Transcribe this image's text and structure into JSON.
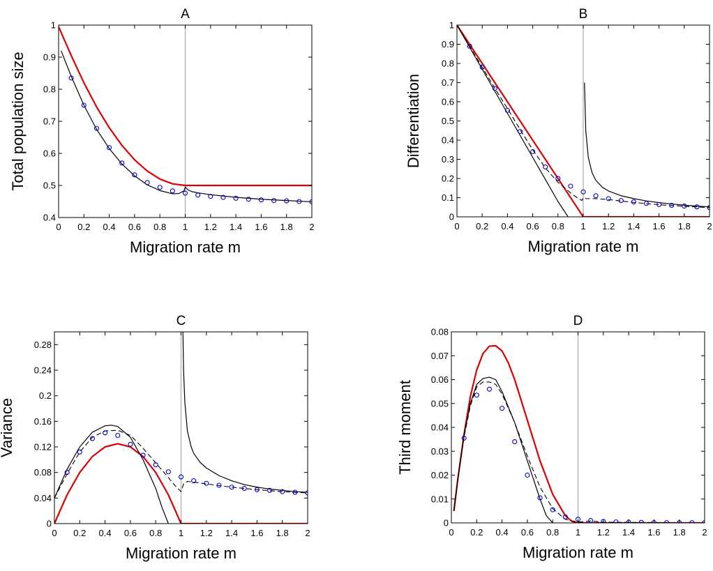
{
  "chart_data": [
    {
      "type": "line",
      "title": "A",
      "xlabel": "Migration rate m",
      "ylabel": "Total population size",
      "xlim": [
        0,
        2
      ],
      "ylim": [
        0.4,
        1
      ],
      "x_ticks": [
        0,
        0.2,
        0.4,
        0.6,
        0.8,
        1,
        1.2,
        1.4,
        1.6,
        1.8,
        2
      ],
      "x_tick_labels": [
        "0",
        "0.2",
        "0.4",
        "0.6",
        "0.8",
        "1",
        "1.2",
        "1.4",
        "1.6",
        "1.8",
        "2"
      ],
      "y_ticks": [
        0.4,
        0.5,
        0.6,
        0.7,
        0.8,
        0.9,
        1
      ],
      "y_tick_labels": [
        "0.4",
        "0.5",
        "0.6",
        "0.7",
        "0.8",
        "0.9",
        "1"
      ],
      "vline": 1,
      "colors": {
        "red": "#dd0000",
        "black": "#000000",
        "markers": "#0000cc",
        "vline": "#aaaaaa"
      },
      "series": [
        {
          "style": "red",
          "x": [
            0,
            0.1,
            0.2,
            0.3,
            0.4,
            0.5,
            0.6,
            0.7,
            0.8,
            0.9,
            1.0,
            1.1,
            1.2,
            1.4,
            1.6,
            1.8,
            2.0
          ],
          "y": [
            0.995,
            0.905,
            0.82,
            0.745,
            0.68,
            0.625,
            0.58,
            0.545,
            0.52,
            0.505,
            0.5,
            0.5,
            0.5,
            0.5,
            0.5,
            0.5,
            0.5
          ]
        },
        {
          "style": "black",
          "x": [
            0.02,
            0.1,
            0.2,
            0.3,
            0.4,
            0.5,
            0.6,
            0.7,
            0.8,
            0.9,
            0.95,
            0.99,
            1.0,
            1.02,
            1.05,
            1.1,
            1.2,
            1.4,
            1.6,
            1.8,
            2.0
          ],
          "y": [
            0.92,
            0.84,
            0.75,
            0.675,
            0.615,
            0.567,
            0.53,
            0.502,
            0.484,
            0.474,
            0.475,
            0.483,
            0.495,
            0.487,
            0.481,
            0.477,
            0.471,
            0.463,
            0.457,
            0.453,
            0.449
          ]
        },
        {
          "style": "markers",
          "x": [
            0.1,
            0.2,
            0.3,
            0.4,
            0.5,
            0.6,
            0.7,
            0.8,
            0.9,
            1.0,
            1.1,
            1.2,
            1.3,
            1.4,
            1.5,
            1.6,
            1.7,
            1.8,
            1.9,
            2.0
          ],
          "y": [
            0.835,
            0.75,
            0.678,
            0.618,
            0.57,
            0.533,
            0.509,
            0.494,
            0.483,
            0.476,
            0.47,
            0.466,
            0.463,
            0.46,
            0.457,
            0.455,
            0.453,
            0.452,
            0.45,
            0.449
          ]
        }
      ]
    },
    {
      "type": "line",
      "title": "B",
      "xlabel": "Migration rate m",
      "ylabel": "Differentiation",
      "xlim": [
        0,
        2
      ],
      "ylim": [
        0,
        1
      ],
      "x_ticks": [
        0,
        0.2,
        0.4,
        0.6,
        0.8,
        1,
        1.2,
        1.4,
        1.6,
        1.8,
        2
      ],
      "x_tick_labels": [
        "0",
        "0.2",
        "0.4",
        "0.6",
        "0.8",
        "1",
        "1.2",
        "1.4",
        "1.6",
        "1.8",
        "2"
      ],
      "y_ticks": [
        0,
        0.1,
        0.2,
        0.3,
        0.4,
        0.5,
        0.6,
        0.7,
        0.8,
        0.9,
        1
      ],
      "y_tick_labels": [
        "0",
        "0.1",
        "0.2",
        "0.3",
        "0.4",
        "0.5",
        "0.6",
        "0.7",
        "0.8",
        "0.9",
        "1"
      ],
      "vline": 1,
      "colors": {
        "red": "#dd0000",
        "black": "#000000",
        "markers": "#0000cc",
        "vline": "#aaaaaa"
      },
      "series": [
        {
          "style": "red",
          "x": [
            0,
            1,
            1,
            2
          ],
          "y": [
            1,
            0,
            0,
            0
          ]
        },
        {
          "style": "black",
          "x": [
            0,
            0.2,
            0.4,
            0.6,
            0.8,
            0.88
          ],
          "y": [
            1,
            0.77,
            0.54,
            0.31,
            0.08,
            0
          ]
        },
        {
          "style": "black",
          "x": [
            1.01,
            1.02,
            1.04,
            1.07,
            1.1,
            1.15,
            1.2,
            1.3,
            1.4,
            1.5,
            1.6,
            1.7,
            1.8,
            1.9,
            2.0
          ],
          "y": [
            0.7,
            0.45,
            0.31,
            0.23,
            0.19,
            0.155,
            0.135,
            0.11,
            0.095,
            0.083,
            0.074,
            0.067,
            0.061,
            0.056,
            0.052
          ]
        },
        {
          "style": "dashed",
          "x": [
            0,
            0.1,
            0.2,
            0.3,
            0.4,
            0.5,
            0.6,
            0.7,
            0.8,
            0.9,
            0.95,
            0.99,
            1.0,
            1.02,
            1.05,
            1.1,
            1.2,
            1.4,
            1.6,
            1.8,
            2.0
          ],
          "y": [
            1,
            0.89,
            0.78,
            0.67,
            0.565,
            0.455,
            0.35,
            0.255,
            0.18,
            0.125,
            0.1,
            0.085,
            0.1,
            0.095,
            0.095,
            0.095,
            0.09,
            0.075,
            0.063,
            0.055,
            0.048
          ]
        },
        {
          "style": "markers",
          "x": [
            0.1,
            0.2,
            0.3,
            0.4,
            0.5,
            0.6,
            0.7,
            0.8,
            0.9,
            1.0,
            1.1,
            1.2,
            1.3,
            1.4,
            1.5,
            1.6,
            1.7,
            1.8,
            1.9,
            2.0
          ],
          "y": [
            0.89,
            0.78,
            0.67,
            0.555,
            0.445,
            0.34,
            0.26,
            0.2,
            0.16,
            0.13,
            0.11,
            0.095,
            0.085,
            0.078,
            0.07,
            0.064,
            0.06,
            0.056,
            0.052,
            0.048
          ]
        }
      ]
    },
    {
      "type": "line",
      "title": "C",
      "xlabel": "Migration rate m",
      "ylabel": "Variance",
      "xlim": [
        0,
        2
      ],
      "ylim": [
        0,
        0.3
      ],
      "x_ticks": [
        0,
        0.2,
        0.4,
        0.6,
        0.8,
        1,
        1.2,
        1.4,
        1.6,
        1.8,
        2
      ],
      "x_tick_labels": [
        "0",
        "0.2",
        "0.4",
        "0.6",
        "0.8",
        "1",
        "1.2",
        "1.4",
        "1.6",
        "1.8",
        "2"
      ],
      "y_ticks": [
        0,
        0.04,
        0.08,
        0.12,
        0.16,
        0.2,
        0.24,
        0.28
      ],
      "y_tick_labels": [
        "0",
        "0.04",
        "0.08",
        "0.12",
        "0.16",
        "0.2",
        "0.24",
        "0.28"
      ],
      "vline": 1,
      "colors": {
        "red": "#dd0000",
        "black": "#000000",
        "markers": "#0000cc",
        "vline": "#aaaaaa"
      },
      "series": [
        {
          "style": "red",
          "x": [
            0,
            0.1,
            0.2,
            0.3,
            0.4,
            0.5,
            0.6,
            0.7,
            0.8,
            0.9,
            1.0,
            2.0
          ],
          "y": [
            0,
            0.045,
            0.08,
            0.105,
            0.12,
            0.125,
            0.12,
            0.105,
            0.08,
            0.045,
            0,
            0
          ]
        },
        {
          "style": "black",
          "x": [
            0,
            0.1,
            0.2,
            0.3,
            0.4,
            0.45,
            0.5,
            0.6,
            0.7,
            0.8,
            0.85,
            0.9
          ],
          "y": [
            0.04,
            0.085,
            0.12,
            0.143,
            0.153,
            0.154,
            0.152,
            0.135,
            0.1,
            0.055,
            0.025,
            0
          ]
        },
        {
          "style": "black",
          "x": [
            1.015,
            1.02,
            1.03,
            1.05,
            1.08,
            1.1,
            1.15,
            1.2,
            1.3,
            1.4,
            1.5,
            1.6,
            1.7,
            1.8,
            1.9,
            2.0
          ],
          "y": [
            0.3,
            0.24,
            0.19,
            0.145,
            0.12,
            0.11,
            0.096,
            0.087,
            0.075,
            0.067,
            0.061,
            0.057,
            0.054,
            0.052,
            0.05,
            0.049
          ]
        },
        {
          "style": "dashed",
          "x": [
            0,
            0.1,
            0.2,
            0.3,
            0.4,
            0.5,
            0.6,
            0.7,
            0.8,
            0.9,
            0.95,
            1.0,
            1.02,
            1.05,
            1.1,
            1.2,
            1.4,
            1.6,
            1.8,
            2.0
          ],
          "y": [
            0.04,
            0.078,
            0.112,
            0.135,
            0.145,
            0.146,
            0.138,
            0.118,
            0.095,
            0.072,
            0.06,
            0.05,
            0.062,
            0.066,
            0.065,
            0.062,
            0.057,
            0.053,
            0.05,
            0.048
          ]
        },
        {
          "style": "markers",
          "x": [
            0.1,
            0.2,
            0.3,
            0.4,
            0.5,
            0.6,
            0.7,
            0.8,
            0.9,
            1.0,
            1.1,
            1.2,
            1.3,
            1.4,
            1.5,
            1.6,
            1.7,
            1.8,
            1.9,
            2.0
          ],
          "y": [
            0.08,
            0.112,
            0.133,
            0.142,
            0.138,
            0.124,
            0.107,
            0.092,
            0.081,
            0.073,
            0.067,
            0.063,
            0.06,
            0.057,
            0.055,
            0.053,
            0.052,
            0.05,
            0.049,
            0.048
          ]
        }
      ]
    },
    {
      "type": "line",
      "title": "D",
      "xlabel": "Migration rate m",
      "ylabel": "Third moment",
      "xlim": [
        0,
        2
      ],
      "ylim": [
        0,
        0.08
      ],
      "x_ticks": [
        0,
        0.2,
        0.4,
        0.6,
        0.8,
        1,
        1.2,
        1.4,
        1.6,
        1.8,
        2
      ],
      "x_tick_labels": [
        "0",
        "0.2",
        "0.4",
        "0.6",
        "0.8",
        "1",
        "1.2",
        "1.4",
        "1.6",
        "1.8",
        "2"
      ],
      "y_ticks": [
        0,
        0.01,
        0.02,
        0.03,
        0.04,
        0.05,
        0.06,
        0.07,
        0.08
      ],
      "y_tick_labels": [
        "0",
        "0.01",
        "0.02",
        "0.03",
        "0.04",
        "0.05",
        "0.06",
        "0.07",
        "0.08"
      ],
      "vline": 1,
      "colors": {
        "red": "#dd0000",
        "black": "#000000",
        "markers": "#0000cc",
        "vline": "#aaaaaa"
      },
      "series": [
        {
          "style": "red",
          "x": [
            0.02,
            0.05,
            0.1,
            0.15,
            0.2,
            0.25,
            0.3,
            0.35,
            0.4,
            0.45,
            0.5,
            0.6,
            0.7,
            0.8,
            0.9,
            0.95,
            1.0,
            2.0
          ],
          "y": [
            0.005,
            0.018,
            0.037,
            0.053,
            0.064,
            0.071,
            0.074,
            0.0742,
            0.072,
            0.067,
            0.06,
            0.043,
            0.026,
            0.012,
            0.003,
            0.0007,
            0,
            0
          ]
        },
        {
          "style": "black",
          "x": [
            0.02,
            0.05,
            0.1,
            0.15,
            0.2,
            0.25,
            0.3,
            0.35,
            0.4,
            0.5,
            0.6,
            0.7,
            0.75,
            0.8
          ],
          "y": [
            0.005,
            0.018,
            0.037,
            0.05,
            0.058,
            0.0605,
            0.061,
            0.06,
            0.055,
            0.042,
            0.026,
            0.01,
            0.003,
            0
          ]
        },
        {
          "style": "dashed",
          "x": [
            0.02,
            0.05,
            0.1,
            0.15,
            0.2,
            0.25,
            0.3,
            0.35,
            0.4,
            0.5,
            0.6,
            0.7,
            0.8,
            0.9,
            1.0,
            1.1,
            1.2,
            2.0
          ],
          "y": [
            0.005,
            0.018,
            0.036,
            0.049,
            0.057,
            0.059,
            0.059,
            0.058,
            0.054,
            0.042,
            0.028,
            0.015,
            0.006,
            0.0015,
            0.0003,
            0.0008,
            0.0003,
            0
          ]
        },
        {
          "style": "markers",
          "x": [
            0.1,
            0.2,
            0.3,
            0.4,
            0.5,
            0.6,
            0.7,
            0.8,
            0.9,
            1.0,
            1.1,
            1.2,
            1.3,
            1.4,
            1.5,
            1.6,
            1.7,
            1.8,
            1.9,
            2.0
          ],
          "y": [
            0.0355,
            0.0535,
            0.056,
            0.048,
            0.034,
            0.02,
            0.0105,
            0.0055,
            0.0025,
            0.0015,
            0.001,
            0.0006,
            0.0004,
            0.0003,
            0.0002,
            0.0001,
            0.0001,
            0.0001,
            0.0001,
            0.0001
          ]
        }
      ]
    }
  ]
}
